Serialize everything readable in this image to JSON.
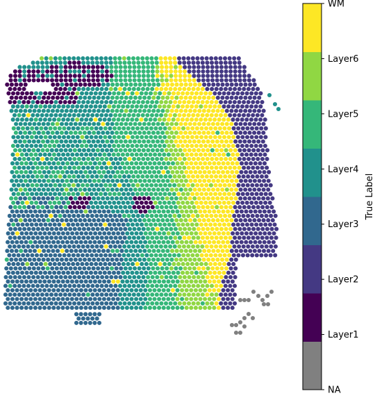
{
  "chart_data": {
    "type": "scatter",
    "description_kind": "spatial transcriptomics spot map colored by categorical label",
    "colorbar": {
      "label": "True Label",
      "categories": [
        "NA",
        "Layer1",
        "Layer2",
        "Layer3",
        "Layer4",
        "Layer5",
        "Layer6",
        "WM"
      ],
      "colors": [
        "#808080",
        "#440154",
        "#443983",
        "#31688e",
        "#21918c",
        "#35b779",
        "#90d743",
        "#fde725"
      ]
    },
    "axes_visible": false,
    "grid": false
  }
}
